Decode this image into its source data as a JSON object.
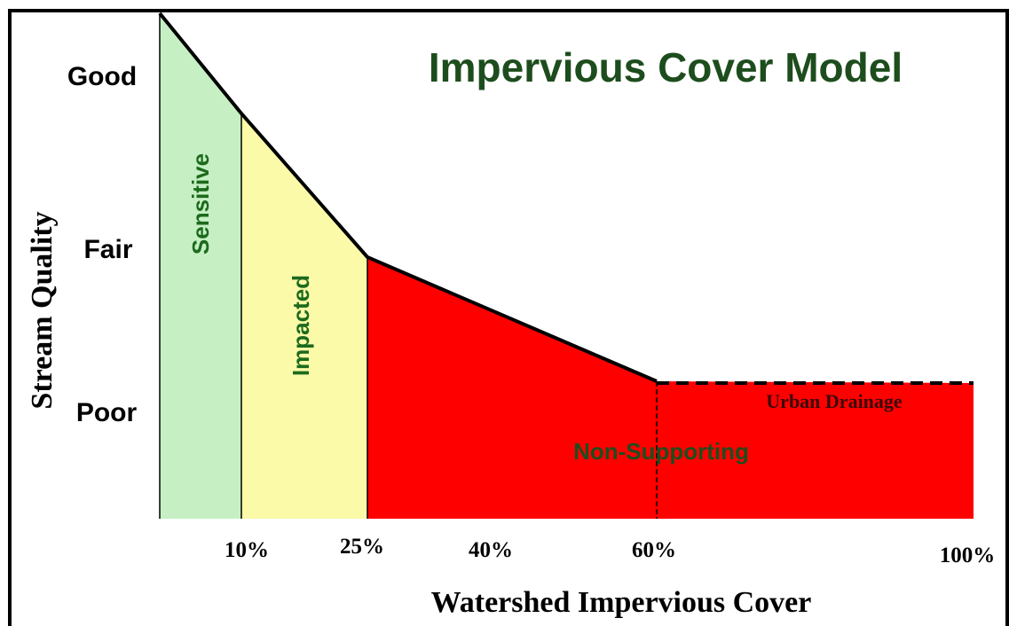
{
  "title": "Impervious Cover Model",
  "y_axis": {
    "label": "Stream Quality",
    "levels": [
      "Good",
      "Fair",
      "Poor"
    ]
  },
  "x_axis": {
    "label": "Watershed Impervious Cover",
    "ticks": [
      "10%",
      "25%",
      "40%",
      "60%",
      "100%"
    ]
  },
  "zones": [
    "Sensitive",
    "Impacted",
    "Non-Supporting",
    "Urban Drainage"
  ]
}
